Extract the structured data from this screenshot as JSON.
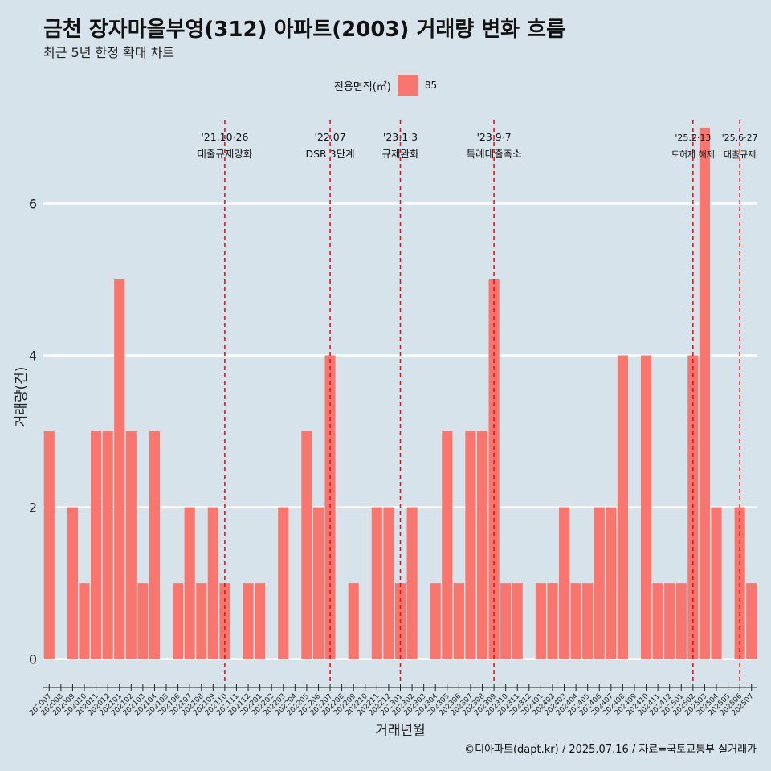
{
  "title": "금천 장자마을부영(312) 아파트(2003) 거래량 변화 흐름",
  "subtitle": "최근 5년 한정 확대 차트",
  "caption": "©디아파트(dapt.kr) / 2025.07.16 / 자료=국토교통부 실거래가",
  "legend": {
    "title": "전용면적(㎡)",
    "label": "85",
    "color": "#f8766d"
  },
  "chart_data": {
    "type": "bar",
    "xlabel": "거래년월",
    "ylabel": "거래량(건)",
    "ylim": [
      -0.3,
      7.2
    ],
    "yticks": [
      0,
      2,
      4,
      6
    ],
    "grid": true,
    "legend_position": "top",
    "bar_color": "#f8766d",
    "categories": [
      "202007",
      "202008",
      "202009",
      "202010",
      "202011",
      "202012",
      "202101",
      "202102",
      "202103",
      "202104",
      "202105",
      "202106",
      "202107",
      "202108",
      "202109",
      "202110",
      "202111",
      "202112",
      "202201",
      "202202",
      "202203",
      "202204",
      "202205",
      "202206",
      "202207",
      "202208",
      "202209",
      "202210",
      "202211",
      "202212",
      "202301",
      "202302",
      "202303",
      "202304",
      "202305",
      "202306",
      "202307",
      "202308",
      "202309",
      "202310",
      "202311",
      "202312",
      "202401",
      "202402",
      "202403",
      "202404",
      "202405",
      "202406",
      "202407",
      "202408",
      "202409",
      "202410",
      "202411",
      "202412",
      "202501",
      "202502",
      "202503",
      "202504",
      "202505",
      "202506",
      "202507"
    ],
    "series": [
      {
        "values": [
          3,
          0,
          2,
          1,
          3,
          3,
          5,
          3,
          1,
          3,
          0,
          1,
          2,
          1,
          2,
          1,
          0,
          1,
          1,
          0,
          2,
          0,
          3,
          2,
          4,
          0,
          1,
          0,
          2,
          2,
          1,
          2,
          0,
          1,
          3,
          1,
          3,
          3,
          5,
          1,
          1,
          0,
          1,
          1,
          2,
          1,
          1,
          2,
          2,
          4,
          0,
          4,
          1,
          1,
          1,
          4,
          7,
          2,
          0,
          2,
          1
        ]
      }
    ],
    "annotations": [
      {
        "at": "202110",
        "date": "'21.10·26",
        "label": "대출규제강화"
      },
      {
        "at": "202207",
        "date": "'22.07",
        "label": "DSR 3단계"
      },
      {
        "at": "202301",
        "date": "'23.1·3",
        "label": "규제완화"
      },
      {
        "at": "202309",
        "date": "'23.9·7",
        "label": "특례대출축소"
      },
      {
        "at": "202502",
        "date": "'25.2·13",
        "label": "토허제 해제"
      },
      {
        "at": "202506",
        "date": "'25.6·27",
        "label": "대출규제"
      }
    ]
  }
}
